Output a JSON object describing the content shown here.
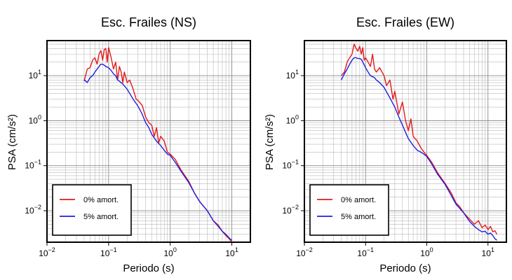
{
  "chart_data": [
    {
      "type": "line",
      "title": "Esc. Frailes (NS)",
      "xlabel": "Periodo (s)",
      "ylabel": "PSA (cm/s²)",
      "xscale": "log",
      "yscale": "log",
      "xlim": [
        0.01,
        20
      ],
      "ylim": [
        0.002,
        60
      ],
      "grid": true,
      "legend_position": "bottom-left",
      "series": [
        {
          "name": "0% amort.",
          "color": "#e31a1c",
          "x": [
            0.04,
            0.045,
            0.05,
            0.055,
            0.06,
            0.065,
            0.07,
            0.075,
            0.08,
            0.085,
            0.09,
            0.095,
            0.1,
            0.11,
            0.12,
            0.13,
            0.14,
            0.15,
            0.16,
            0.17,
            0.18,
            0.2,
            0.22,
            0.25,
            0.28,
            0.3,
            0.35,
            0.4,
            0.45,
            0.5,
            0.55,
            0.6,
            0.65,
            0.7,
            0.8,
            0.9,
            1.0,
            1.2,
            1.5,
            2.0,
            2.5,
            3.0,
            4.0,
            5.0,
            6.0,
            7.0,
            8.0,
            9.0,
            10.0
          ],
          "y": [
            7.5,
            14,
            15,
            22,
            25,
            18,
            30,
            36,
            22,
            38,
            40,
            20,
            42,
            25,
            14,
            20,
            8,
            16,
            12,
            7,
            12,
            7,
            8,
            5,
            3,
            2.8,
            2.2,
            1.2,
            0.9,
            0.8,
            0.45,
            0.7,
            0.32,
            0.45,
            0.35,
            0.2,
            0.18,
            0.14,
            0.08,
            0.045,
            0.024,
            0.016,
            0.01,
            0.006,
            0.0048,
            0.0035,
            0.0028,
            0.0024,
            0.002
          ]
        },
        {
          "name": "5% amort.",
          "color": "#1f1fe0",
          "x": [
            0.04,
            0.045,
            0.05,
            0.055,
            0.06,
            0.065,
            0.07,
            0.075,
            0.08,
            0.085,
            0.09,
            0.1,
            0.11,
            0.12,
            0.13,
            0.14,
            0.15,
            0.17,
            0.2,
            0.25,
            0.3,
            0.35,
            0.4,
            0.45,
            0.5,
            0.6,
            0.7,
            0.8,
            0.9,
            1.0,
            1.2,
            1.5,
            2.0,
            2.5,
            3.0,
            4.0,
            5.0,
            6.0,
            7.0,
            8.0,
            9.0,
            10.0
          ],
          "y": [
            8.2,
            7,
            9,
            10,
            12,
            14,
            16,
            18,
            18,
            17,
            16,
            15,
            13,
            11,
            10,
            8,
            7.5,
            6.5,
            5,
            3,
            2.1,
            1.4,
            0.9,
            0.7,
            0.5,
            0.35,
            0.28,
            0.22,
            0.18,
            0.17,
            0.12,
            0.075,
            0.042,
            0.024,
            0.016,
            0.01,
            0.006,
            0.0045,
            0.0035,
            0.003,
            0.0025,
            0.0022
          ]
        }
      ]
    },
    {
      "type": "line",
      "title": "Esc. Frailes (EW)",
      "xlabel": "Periodo (s)",
      "ylabel": "PSA (cm/s²)",
      "xscale": "log",
      "yscale": "log",
      "xlim": [
        0.01,
        20
      ],
      "ylim": [
        0.002,
        60
      ],
      "grid": true,
      "legend_position": "bottom-left",
      "series": [
        {
          "name": "0% amort.",
          "color": "#e31a1c",
          "x": [
            0.04,
            0.045,
            0.05,
            0.055,
            0.06,
            0.065,
            0.07,
            0.075,
            0.08,
            0.085,
            0.09,
            0.095,
            0.1,
            0.11,
            0.12,
            0.13,
            0.14,
            0.15,
            0.17,
            0.2,
            0.22,
            0.25,
            0.28,
            0.3,
            0.35,
            0.4,
            0.45,
            0.5,
            0.55,
            0.6,
            0.7,
            0.8,
            0.9,
            1.0,
            1.2,
            1.5,
            2.0,
            2.5,
            3.0,
            3.5,
            4.0,
            5.0,
            6.0,
            7.0,
            8.0,
            9.0,
            10.0,
            11.0,
            12.0,
            13.0,
            14.0
          ],
          "y": [
            10,
            12,
            20,
            25,
            30,
            50,
            40,
            35,
            45,
            30,
            42,
            22,
            25,
            20,
            16,
            30,
            14,
            12,
            15,
            10,
            6,
            8,
            3,
            4.5,
            1.4,
            2.6,
            1.0,
            0.6,
            1.1,
            0.45,
            0.35,
            0.25,
            0.2,
            0.17,
            0.12,
            0.07,
            0.04,
            0.025,
            0.015,
            0.012,
            0.009,
            0.0065,
            0.005,
            0.006,
            0.0042,
            0.0048,
            0.0038,
            0.0045,
            0.0034,
            0.0036,
            0.003
          ]
        },
        {
          "name": "5% amort.",
          "color": "#1f1fe0",
          "x": [
            0.04,
            0.045,
            0.05,
            0.055,
            0.06,
            0.065,
            0.07,
            0.075,
            0.08,
            0.085,
            0.09,
            0.1,
            0.11,
            0.12,
            0.13,
            0.14,
            0.15,
            0.17,
            0.2,
            0.25,
            0.3,
            0.35,
            0.4,
            0.45,
            0.5,
            0.6,
            0.7,
            0.8,
            0.9,
            1.0,
            1.2,
            1.5,
            2.0,
            2.5,
            3.0,
            4.0,
            5.0,
            6.0,
            7.0,
            8.0,
            9.0,
            10.0,
            11.0,
            12.0,
            13.0,
            14.0
          ],
          "y": [
            8,
            11,
            14,
            18,
            22,
            25,
            25,
            24,
            24,
            23,
            20,
            15,
            12,
            10,
            9.5,
            9,
            8,
            7,
            5.5,
            3.2,
            2.0,
            1.2,
            0.8,
            0.55,
            0.4,
            0.28,
            0.22,
            0.2,
            0.18,
            0.16,
            0.11,
            0.065,
            0.038,
            0.022,
            0.014,
            0.009,
            0.0058,
            0.0045,
            0.0038,
            0.0034,
            0.0035,
            0.003,
            0.0032,
            0.0028,
            0.0024,
            0.0022
          ]
        }
      ]
    }
  ]
}
